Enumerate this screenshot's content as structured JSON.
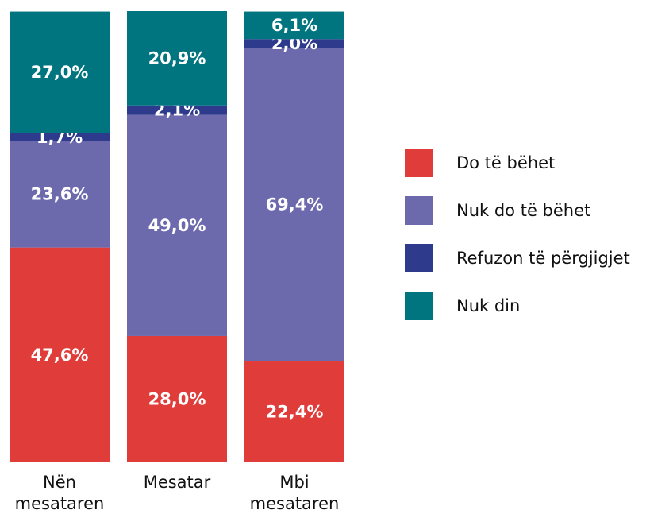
{
  "chart_data": {
    "type": "stacked_bar",
    "categories": [
      "Nën mesataren",
      "Mesatar",
      "Mbi mesataren"
    ],
    "ylim": [
      0,
      100
    ],
    "series": [
      {
        "name": "Do të bëhet",
        "color": "#e03c3a",
        "values": [
          47.6,
          28.0,
          22.4
        ],
        "value_labels": [
          "47,6%",
          "28,0%",
          "22,4%"
        ]
      },
      {
        "name": "Nuk do të bëhet",
        "color": "#6c6aad",
        "values": [
          23.6,
          49.0,
          69.4
        ],
        "value_labels": [
          "23,6%",
          "49,0%",
          "69,4%"
        ]
      },
      {
        "name": "Refuzon të përgjigjet",
        "color": "#2e3a8c",
        "values": [
          1.7,
          2.1,
          2.0
        ],
        "value_labels": [
          "1,7%",
          "2,1%",
          "2,0%"
        ]
      },
      {
        "name": "Nuk din",
        "color": "#00757f",
        "values": [
          27.0,
          20.9,
          6.1
        ],
        "value_labels": [
          "27,0%",
          "20,9%",
          "6,1%"
        ]
      }
    ],
    "legend": "right"
  }
}
